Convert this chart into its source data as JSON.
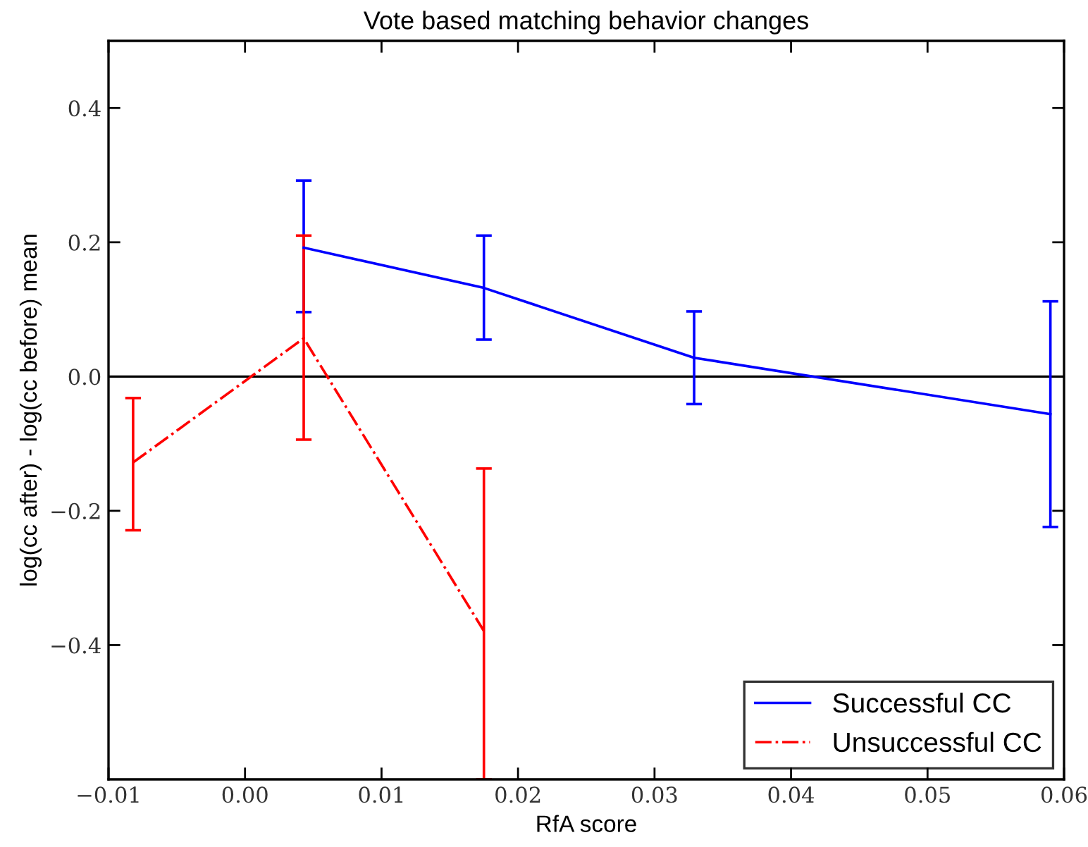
{
  "chart_data": {
    "type": "line",
    "title": "Vote based matching behavior changes",
    "xlabel": "RfA score",
    "ylabel": "log(cc after) - log(cc before) mean",
    "xlim": [
      -0.01,
      0.06
    ],
    "ylim": [
      -0.6,
      0.5
    ],
    "xticks": [
      {
        "value": -0.01,
        "label": "−0.01"
      },
      {
        "value": 0,
        "label": "0.00"
      },
      {
        "value": 0.01,
        "label": "0.01"
      },
      {
        "value": 0.02,
        "label": "0.02"
      },
      {
        "value": 0.03,
        "label": "0.03"
      },
      {
        "value": 0.04,
        "label": "0.04"
      },
      {
        "value": 0.05,
        "label": "0.05"
      },
      {
        "value": 0.06,
        "label": "0.06"
      }
    ],
    "yticks": [
      {
        "value": -0.4,
        "label": "−0.4"
      },
      {
        "value": -0.2,
        "label": "−0.2"
      },
      {
        "value": 0,
        "label": "0.0"
      },
      {
        "value": 0.2,
        "label": "0.2"
      },
      {
        "value": 0.4,
        "label": "0.4"
      }
    ],
    "grid": false,
    "legend": "bottom right",
    "marker": "none",
    "ref_lines": [
      {
        "axis": "y",
        "value": 0,
        "color": "#000000"
      }
    ],
    "series": [
      {
        "name": "Successful CC",
        "color": "#0000ff",
        "line_style": "solid",
        "x": [
          0.0043,
          0.0175,
          0.0329,
          0.059
        ],
        "values": [
          0.192,
          0.132,
          0.028,
          -0.056
        ],
        "errors": [
          [
            0.096,
            0.292
          ],
          [
            0.055,
            0.21
          ],
          [
            -0.041,
            0.097
          ],
          [
            -0.224,
            0.112
          ]
        ]
      },
      {
        "name": "Unsuccessful CC",
        "color": "#ff0000",
        "line_style": "dashdot",
        "x": [
          -0.0082,
          0.0043,
          0.0175
        ],
        "values": [
          -0.128,
          0.057,
          -0.379
        ],
        "errors": [
          [
            -0.229,
            -0.032
          ],
          [
            -0.094,
            0.21
          ],
          [
            -0.6,
            -0.137
          ]
        ]
      }
    ]
  }
}
